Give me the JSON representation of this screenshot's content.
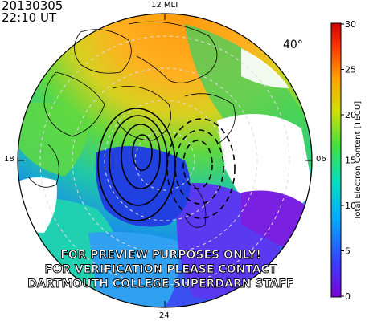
{
  "header": {
    "date": "20130305",
    "time": "22:10 UT"
  },
  "map": {
    "mlt_top": "12 MLT",
    "mlt_left": "18",
    "mlt_right": "06",
    "mlt_bottom": "24",
    "latitude_label": "40°",
    "watermark": [
      "FOR PREVIEW PURPOSES ONLY!",
      "FOR VERIFICATION PLEASE CONTACT",
      "DARTMOUTH COLLEGE SUPERDARN STAFF"
    ]
  },
  "colorbar": {
    "label": "Total Electron Content [TECU]",
    "ticks": [
      "0",
      "5",
      "10",
      "15",
      "20",
      "25",
      "30"
    ],
    "range": [
      0,
      30
    ],
    "colors": [
      "#7a00d8",
      "#3a3aff",
      "#00a8ff",
      "#00e0c0",
      "#40e040",
      "#d0e000",
      "#ffa000",
      "#ff3000",
      "#d00000"
    ]
  }
}
